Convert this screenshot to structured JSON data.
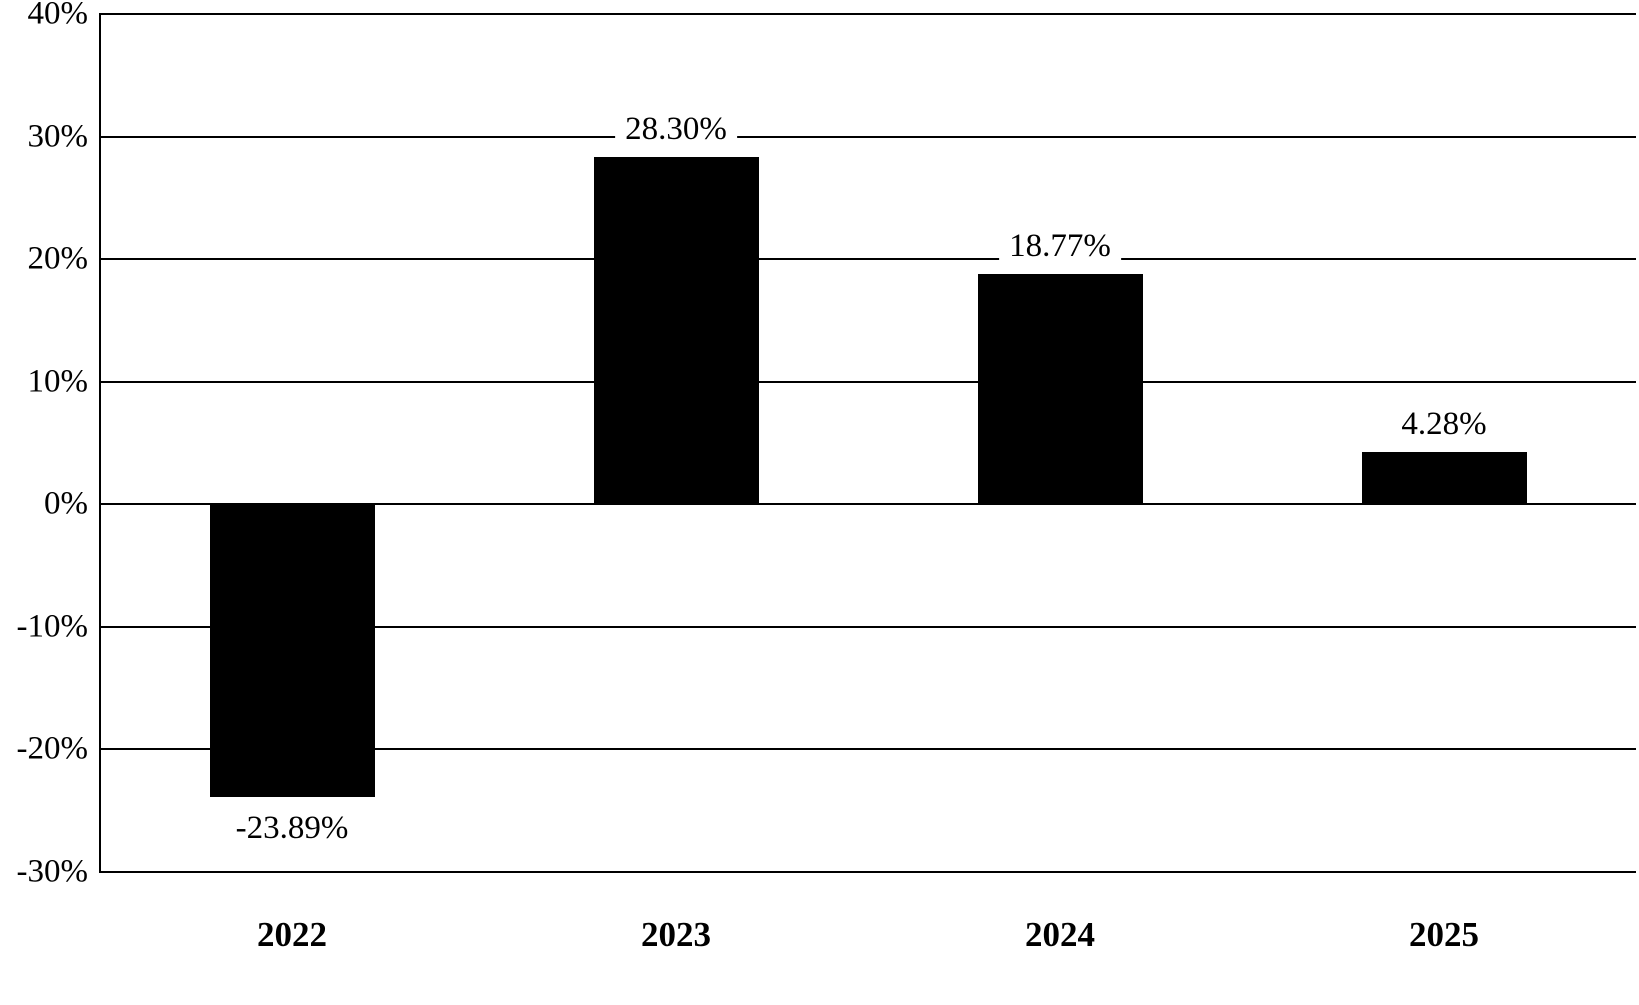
{
  "chart_data": {
    "type": "bar",
    "title": "",
    "xlabel": "",
    "ylabel": "",
    "categories": [
      "2022",
      "2023",
      "2024",
      "2025"
    ],
    "values": [
      -23.89,
      28.3,
      18.77,
      4.28
    ],
    "data_labels": [
      "-23.89%",
      "28.30%",
      "18.77%",
      "4.28%"
    ],
    "ylim": [
      -30,
      40
    ],
    "ytick_step": 10,
    "ytick_labels": [
      "40%",
      "30%",
      "20%",
      "10%",
      "0%",
      "-10%",
      "-20%",
      "-30%"
    ],
    "grid": true,
    "legend": "none",
    "bar_color": "#000000",
    "background_color": "#ffffff",
    "axis_color": "#000000"
  }
}
